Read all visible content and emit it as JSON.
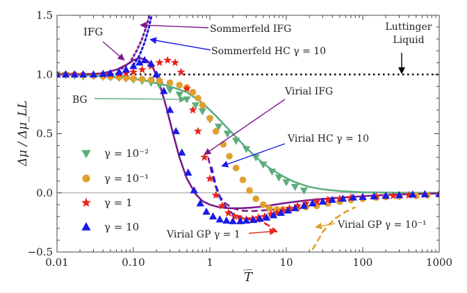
{
  "chart_data": {
    "type": "scatter",
    "xscale": "log",
    "xlim": [
      0.01,
      1000
    ],
    "ylim": [
      -0.5,
      1.5
    ],
    "xlabel": "T̅",
    "ylabel": "Δμ / Δμ_LL",
    "x_ticks": [
      {
        "value": 0.01,
        "label": "0.01"
      },
      {
        "value": 0.1,
        "label": "0.10"
      },
      {
        "value": 1,
        "label": "1"
      },
      {
        "value": 10,
        "label": "10"
      },
      {
        "value": 100,
        "label": "100"
      },
      {
        "value": 1000,
        "label": "1000"
      }
    ],
    "y_ticks": [
      {
        "value": -0.5,
        "label": "−0.5"
      },
      {
        "value": 0.0,
        "label": "0.0"
      },
      {
        "value": 0.5,
        "label": "0.5"
      },
      {
        "value": 1.0,
        "label": "1.0"
      },
      {
        "value": 1.5,
        "label": "1.5"
      }
    ],
    "reference_lines": [
      {
        "y": 1.0,
        "style": "dotted",
        "color": "#000000"
      },
      {
        "y": 0.0,
        "style": "solid",
        "color": "#999999"
      }
    ],
    "legend": {
      "placement": "lower-left",
      "entries": [
        {
          "label": "γ = 10⁻²",
          "marker": "triangle-down",
          "color": "#5cae7d"
        },
        {
          "label": "γ = 10⁻¹",
          "marker": "circle",
          "color": "#e0a030"
        },
        {
          "label": "γ = 1",
          "marker": "star",
          "color": "#e8261c"
        },
        {
          "label": "γ = 10",
          "marker": "triangle-up",
          "color": "#1a1ae6"
        }
      ]
    },
    "series": [
      {
        "name": "γ = 10⁻²",
        "kind": "markers",
        "marker": "triangle-down",
        "color": "#5cae7d",
        "x": [
          0.01,
          0.013,
          0.017,
          0.022,
          0.03,
          0.04,
          0.05,
          0.065,
          0.08,
          0.1,
          0.13,
          0.17,
          0.22,
          0.3,
          0.4,
          0.5,
          0.65,
          0.8,
          1,
          1.3,
          1.7,
          2.2,
          3,
          4,
          5,
          6.5,
          8,
          10,
          13,
          17
        ],
        "y": [
          1.0,
          0.995,
          0.99,
          0.985,
          0.985,
          0.98,
          0.975,
          0.97,
          0.965,
          0.955,
          0.945,
          0.93,
          0.91,
          0.87,
          0.83,
          0.79,
          0.74,
          0.69,
          0.62,
          0.56,
          0.5,
          0.44,
          0.37,
          0.3,
          0.24,
          0.18,
          0.13,
          0.09,
          0.05,
          0.02
        ]
      },
      {
        "name": "γ = 10⁻¹",
        "kind": "markers",
        "marker": "circle",
        "color": "#e0a030",
        "x": [
          0.01,
          0.013,
          0.017,
          0.022,
          0.03,
          0.04,
          0.05,
          0.065,
          0.08,
          0.1,
          0.13,
          0.17,
          0.22,
          0.3,
          0.4,
          0.5,
          0.6,
          0.7,
          0.8,
          1,
          1.2,
          1.5,
          1.8,
          2.2,
          2.7,
          3.3,
          4,
          5,
          6,
          7.5,
          9,
          11,
          14,
          18,
          25,
          35,
          50,
          70,
          100,
          150,
          200,
          300,
          500,
          700,
          1000
        ],
        "y": [
          1.0,
          1.0,
          1.0,
          0.995,
          0.99,
          0.985,
          0.98,
          0.975,
          0.97,
          0.965,
          0.96,
          0.955,
          0.945,
          0.93,
          0.91,
          0.89,
          0.85,
          0.8,
          0.74,
          0.63,
          0.52,
          0.41,
          0.31,
          0.21,
          0.11,
          0.02,
          -0.05,
          -0.1,
          -0.13,
          -0.14,
          -0.14,
          -0.14,
          -0.13,
          -0.12,
          -0.11,
          -0.09,
          -0.075,
          -0.06,
          -0.05,
          -0.04,
          -0.035,
          -0.03,
          -0.025,
          -0.02,
          -0.015
        ]
      },
      {
        "name": "γ = 1",
        "kind": "markers",
        "marker": "star",
        "color": "#e8261c",
        "x": [
          0.01,
          0.013,
          0.017,
          0.022,
          0.03,
          0.04,
          0.05,
          0.065,
          0.08,
          0.1,
          0.13,
          0.17,
          0.22,
          0.28,
          0.35,
          0.42,
          0.5,
          0.6,
          0.7,
          0.85,
          1,
          1.2,
          1.45,
          1.75,
          2.1,
          2.5,
          3,
          3.6,
          4.3,
          5.2,
          6.3,
          7.6,
          9,
          11,
          14,
          18,
          25,
          35,
          50,
          70,
          100,
          150,
          250,
          400,
          650,
          1000
        ],
        "y": [
          1.0,
          1.0,
          1.0,
          1.0,
          1.0,
          1.0,
          1.0,
          1.005,
          1.01,
          1.02,
          1.04,
          1.07,
          1.1,
          1.12,
          1.1,
          1.02,
          0.88,
          0.7,
          0.52,
          0.3,
          0.12,
          -0.02,
          -0.11,
          -0.17,
          -0.2,
          -0.22,
          -0.225,
          -0.22,
          -0.21,
          -0.2,
          -0.18,
          -0.17,
          -0.15,
          -0.13,
          -0.11,
          -0.09,
          -0.075,
          -0.06,
          -0.05,
          -0.04,
          -0.035,
          -0.03,
          -0.025,
          -0.02,
          -0.015,
          -0.01
        ]
      },
      {
        "name": "γ = 10",
        "kind": "markers",
        "marker": "triangle-up",
        "color": "#1a1ae6",
        "x": [
          0.01,
          0.013,
          0.017,
          0.022,
          0.03,
          0.04,
          0.05,
          0.065,
          0.08,
          0.1,
          0.12,
          0.14,
          0.17,
          0.2,
          0.25,
          0.3,
          0.36,
          0.43,
          0.52,
          0.62,
          0.75,
          0.9,
          1.1,
          1.35,
          1.65,
          2,
          2.5,
          3,
          3.7,
          4.5,
          5.5,
          6.8,
          8.5,
          10.5,
          13,
          17,
          22,
          30,
          40,
          55,
          75,
          100,
          140,
          200,
          300,
          450,
          650,
          1000
        ],
        "y": [
          1.0,
          1.0,
          1.0,
          1.0,
          1.0,
          1.005,
          1.01,
          1.02,
          1.04,
          1.07,
          1.1,
          1.12,
          1.09,
          1.0,
          0.86,
          0.7,
          0.52,
          0.34,
          0.17,
          0.02,
          -0.09,
          -0.16,
          -0.2,
          -0.225,
          -0.235,
          -0.24,
          -0.24,
          -0.235,
          -0.23,
          -0.22,
          -0.21,
          -0.19,
          -0.17,
          -0.15,
          -0.13,
          -0.11,
          -0.09,
          -0.075,
          -0.06,
          -0.05,
          -0.04,
          -0.035,
          -0.03,
          -0.025,
          -0.02,
          -0.015,
          -0.012,
          -0.01
        ]
      },
      {
        "name": "BG",
        "kind": "line",
        "style": "solid",
        "color": "#5cae7d",
        "x": [
          0.01,
          0.02,
          0.04,
          0.08,
          0.15,
          0.3,
          0.5,
          0.8,
          1.2,
          1.8,
          2.7,
          4,
          6,
          9,
          13,
          20,
          30,
          50,
          100,
          300,
          1000
        ],
        "y": [
          1.0,
          0.995,
          0.985,
          0.97,
          0.945,
          0.9,
          0.85,
          0.76,
          0.65,
          0.53,
          0.41,
          0.3,
          0.21,
          0.14,
          0.09,
          0.05,
          0.03,
          0.015,
          0.005,
          0.001,
          0.0
        ]
      },
      {
        "name": "IFG",
        "kind": "line",
        "style": "solid",
        "color": "#7a1a8c",
        "x": [
          0.01,
          0.02,
          0.04,
          0.06,
          0.08,
          0.1,
          0.12,
          0.15,
          0.18,
          0.22,
          0.27,
          0.33,
          0.4,
          0.5,
          0.65,
          0.8,
          1,
          1.3,
          1.8,
          2.5,
          3.5,
          5,
          7,
          10,
          15,
          25,
          40,
          70,
          120,
          250,
          500,
          1000
        ],
        "y": [
          1.0,
          1.0,
          1.01,
          1.04,
          1.08,
          1.12,
          1.14,
          1.12,
          1.06,
          0.92,
          0.72,
          0.5,
          0.3,
          0.12,
          -0.01,
          -0.07,
          -0.1,
          -0.12,
          -0.13,
          -0.13,
          -0.125,
          -0.115,
          -0.1,
          -0.085,
          -0.07,
          -0.055,
          -0.045,
          -0.035,
          -0.025,
          -0.015,
          -0.01,
          -0.005
        ]
      },
      {
        "name": "Sommerfeld IFG",
        "kind": "line",
        "style": "dotted",
        "color": "#7a1a8c",
        "x": [
          0.07,
          0.09,
          0.11,
          0.13,
          0.15,
          0.17
        ],
        "y": [
          1.05,
          1.1,
          1.2,
          1.3,
          1.42,
          1.55
        ]
      },
      {
        "name": "Sommerfeld HC γ = 10",
        "kind": "line",
        "style": "dotted",
        "color": "#1a1ae6",
        "x": [
          0.1,
          0.12,
          0.14,
          0.16,
          0.18
        ],
        "y": [
          1.08,
          1.16,
          1.27,
          1.4,
          1.55
        ]
      },
      {
        "name": "Virial IFG",
        "kind": "line",
        "style": "dashed",
        "color": "#7a1a8c",
        "x": [
          0.95,
          1.1,
          1.3,
          1.6,
          2,
          2.6,
          3.4,
          4.5,
          6,
          8
        ],
        "y": [
          0.3,
          0.12,
          -0.02,
          -0.09,
          -0.13,
          -0.15,
          -0.155,
          -0.15,
          -0.145,
          -0.14
        ]
      },
      {
        "name": "Virial HC γ = 10",
        "kind": "line",
        "style": "dashed",
        "color": "#1a1ae6",
        "x": [
          1.05,
          1.2,
          1.4,
          1.7,
          2.1,
          2.7,
          3.5,
          4.5,
          6
        ],
        "y": [
          0.22,
          0.06,
          -0.06,
          -0.14,
          -0.19,
          -0.215,
          -0.225,
          -0.225,
          -0.22
        ]
      },
      {
        "name": "Virial GP γ = 1",
        "kind": "line",
        "style": "dashed",
        "color": "#e8261c",
        "x": [
          2.2,
          3,
          4,
          5,
          6,
          7,
          8
        ],
        "y": [
          -0.19,
          -0.21,
          -0.23,
          -0.25,
          -0.28,
          -0.31,
          -0.35
        ]
      },
      {
        "name": "Virial GP γ = 10⁻¹",
        "kind": "line",
        "style": "dashed",
        "color": "#e0a030",
        "x": [
          22,
          26,
          30,
          36,
          45,
          60,
          80
        ],
        "y": [
          -0.48,
          -0.4,
          -0.33,
          -0.27,
          -0.21,
          -0.16,
          -0.12
        ]
      }
    ],
    "annotations": [
      {
        "text": "Sommerfeld IFG",
        "color": "#7a1a8c"
      },
      {
        "text": "Sommerfeld HC γ = 10",
        "color": "#1a1ae6"
      },
      {
        "text": "IFG",
        "color": "#7a1a8c"
      },
      {
        "text": "Luttinger Liquid",
        "line1": "Luttinger",
        "line2": "Liquid",
        "color": "#000000"
      },
      {
        "text": "BG",
        "color": "#5cae7d"
      },
      {
        "text": "Virial IFG",
        "color": "#7a1a8c"
      },
      {
        "text": "Virial HC γ = 10",
        "color": "#1a1ae6"
      },
      {
        "text": "Virial GP γ = 1",
        "color": "#e8261c"
      },
      {
        "text": "Virial GP γ = 10⁻¹",
        "color": "#e0a030"
      }
    ]
  }
}
